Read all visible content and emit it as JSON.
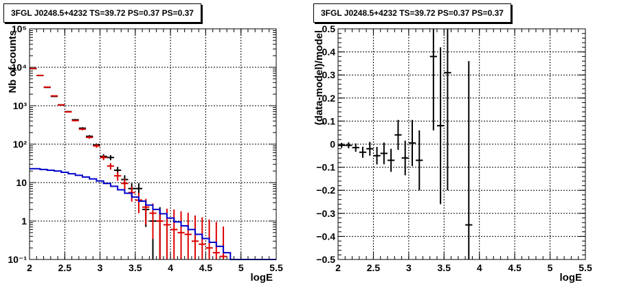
{
  "chart_data": [
    {
      "type": "line",
      "title": "3FGL J0248.5+4232 TS=39.72 PS=0.37 PS=0.37",
      "xlabel": "logE",
      "ylabel": "Nb of counts",
      "xlim": [
        2,
        5.5
      ],
      "ylim": [
        0.1,
        100000
      ],
      "yscale": "log",
      "grid": true,
      "x_ticks": [
        2,
        2.5,
        3,
        3.5,
        4,
        4.5,
        5,
        5.5
      ],
      "x_tick_labels": [
        "2",
        "2.5",
        "3",
        "3.5",
        "4",
        "4.5",
        "5",
        "5.5"
      ],
      "y_ticks": [
        0.1,
        1,
        10,
        100,
        1000,
        10000,
        100000
      ],
      "y_tick_labels": [
        "10⁻¹",
        "1",
        "10",
        "10²",
        "10³",
        "10⁴",
        "10⁵"
      ],
      "series": [
        {
          "color": "#000000",
          "style": "errorbar",
          "bin_half_width": 0.05,
          "x": [
            2.05,
            2.15,
            2.25,
            2.35,
            2.45,
            2.55,
            2.65,
            2.75,
            2.85,
            2.95,
            3.05,
            3.15,
            3.25,
            3.35,
            3.45,
            3.55,
            3.65,
            3.75,
            3.85
          ],
          "y": [
            9200,
            6100,
            3000,
            1750,
            1050,
            700,
            430,
            260,
            160,
            95,
            48,
            45,
            21,
            12,
            7,
            7,
            2,
            1,
            1
          ],
          "err_low": [
            95,
            78,
            55,
            42,
            32,
            26,
            21,
            16,
            12,
            9.5,
            6.9,
            6.7,
            4.6,
            3.5,
            2.6,
            2.6,
            1.3,
            0.9,
            0.9
          ],
          "err_high": [
            95,
            78,
            55,
            42,
            32,
            26,
            21,
            16,
            12,
            9.5,
            6.9,
            6.7,
            4.6,
            3.5,
            2.6,
            2.6,
            1.3,
            1.3,
            1.3
          ]
        },
        {
          "color": "#dd0000",
          "style": "errorbar",
          "bin_half_width": 0.05,
          "x": [
            2.05,
            2.15,
            2.25,
            2.35,
            2.45,
            2.55,
            2.65,
            2.75,
            2.85,
            2.95,
            3.05,
            3.15,
            3.25,
            3.35,
            3.45,
            3.55,
            3.65,
            3.75,
            3.85,
            3.95,
            4.05,
            4.15,
            4.25,
            4.35,
            4.45,
            4.55,
            4.65,
            4.75
          ],
          "y": [
            9300,
            6150,
            3050,
            1800,
            1050,
            690,
            410,
            245,
            150,
            90,
            45,
            27,
            15,
            9.5,
            5.5,
            3.5,
            2.3,
            1.6,
            1.0,
            0.8,
            0.6,
            0.5,
            0.45,
            0.3,
            0.25,
            0.2,
            0.15,
            0.12
          ],
          "err_low": [
            95,
            78,
            55,
            42,
            32,
            26,
            20,
            16,
            12,
            9.5,
            6.7,
            5.2,
            3.9,
            3.1,
            2.3,
            1.9,
            1.5,
            1.26,
            0.95,
            0.75,
            0.55,
            0.45,
            0.4,
            0.28,
            0.23,
            0.18,
            0.14,
            0.11
          ],
          "err_high": [
            95,
            78,
            55,
            42,
            32,
            26,
            20,
            16,
            12,
            9.5,
            6.7,
            5.2,
            3.9,
            3.1,
            2.3,
            1.9,
            1.5,
            1.26,
            0.95,
            1.3,
            1.4,
            1.3,
            1.2,
            1.1,
            1.0,
            0.9,
            0.8,
            0.6
          ]
        },
        {
          "color": "#0000cc",
          "style": "step",
          "x": [
            1.95,
            2.05,
            2.15,
            2.25,
            2.35,
            2.45,
            2.55,
            2.65,
            2.75,
            2.85,
            2.95,
            3.05,
            3.15,
            3.25,
            3.35,
            3.45,
            3.55,
            3.65,
            3.75,
            3.85,
            3.95,
            4.05,
            4.15,
            4.25,
            4.35,
            4.45,
            4.55,
            4.65,
            4.75,
            4.85,
            5.05,
            5.55
          ],
          "y": [
            23,
            23,
            22,
            21,
            20,
            18.5,
            17,
            15.5,
            14,
            12.5,
            11,
            9.5,
            8,
            6.5,
            5.3,
            4.2,
            3.3,
            2.6,
            2.0,
            1.55,
            1.2,
            0.95,
            0.75,
            0.6,
            0.45,
            0.35,
            0.28,
            0.22,
            0.15,
            0.1,
            0.1,
            0.1
          ]
        }
      ]
    },
    {
      "type": "scatter",
      "title": "3FGL J0248.5+4232 TS=39.72 PS=0.37 PS=0.37",
      "xlabel": "logE",
      "ylabel": "(data-model)/model",
      "xlim": [
        2,
        5.5
      ],
      "ylim": [
        -0.5,
        0.5
      ],
      "grid": true,
      "x_ticks": [
        2,
        2.5,
        3,
        3.5,
        4,
        4.5,
        5,
        5.5
      ],
      "x_tick_labels": [
        "2",
        "2.5",
        "3",
        "3.5",
        "4",
        "4.5",
        "5",
        "5.5"
      ],
      "y_ticks": [
        -0.5,
        -0.4,
        -0.3,
        -0.2,
        -0.1,
        0,
        0.1,
        0.2,
        0.3,
        0.4,
        0.5
      ],
      "y_tick_labels": [
        "−0.5",
        "−0.4",
        "−0.3",
        "−0.2",
        "−0.1",
        "0",
        "0.1",
        "0.2",
        "0.3",
        "0.4",
        "0.5"
      ],
      "series": [
        {
          "color": "#000000",
          "style": "errorbar",
          "bin_half_width": 0.05,
          "x": [
            2.05,
            2.15,
            2.25,
            2.35,
            2.45,
            2.55,
            2.65,
            2.75,
            2.85,
            2.95,
            3.05,
            3.15,
            3.35,
            3.45,
            3.55,
            3.85
          ],
          "y": [
            -0.005,
            -0.005,
            -0.015,
            -0.035,
            -0.02,
            -0.05,
            -0.04,
            -0.07,
            0.04,
            -0.06,
            0.005,
            -0.07,
            0.38,
            0.08,
            0.31,
            -0.35
          ],
          "err": [
            0.011,
            0.013,
            0.018,
            0.024,
            0.03,
            0.038,
            0.047,
            0.05,
            0.065,
            0.075,
            0.1,
            0.13,
            0.32,
            0.34,
            0.51,
            0.71
          ]
        }
      ]
    }
  ]
}
